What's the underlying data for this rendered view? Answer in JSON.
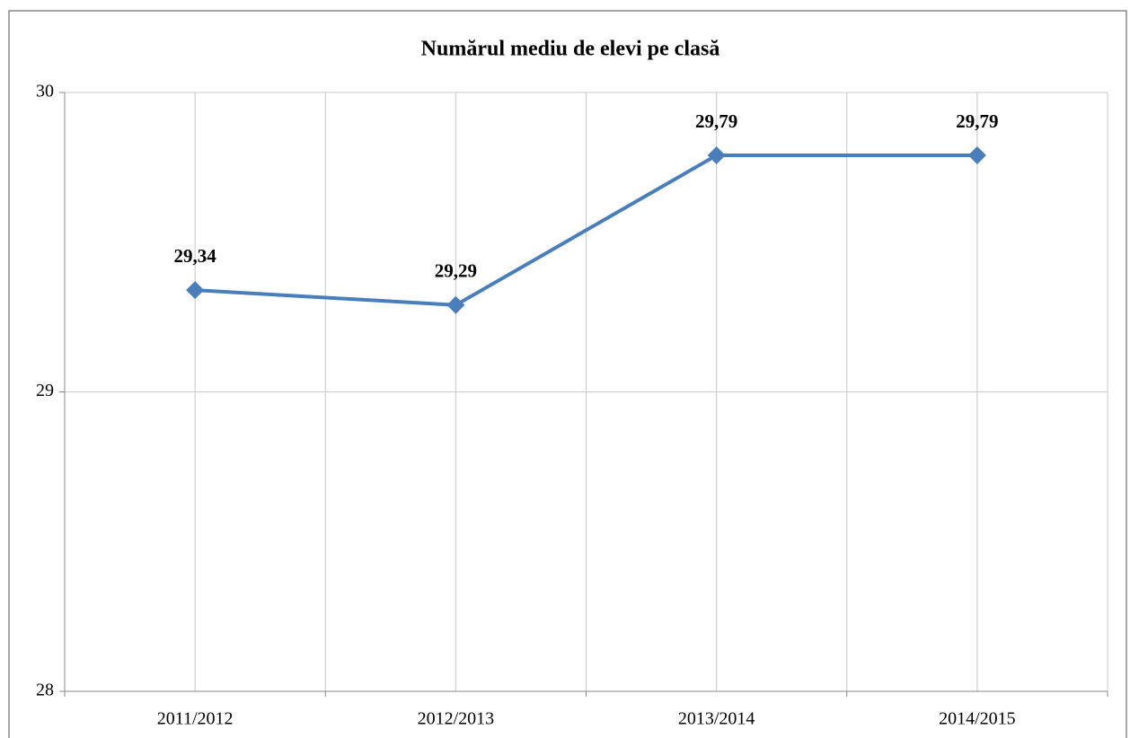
{
  "chart_data": {
    "type": "line",
    "title": "Numărul mediu de elevi pe clasă",
    "categories": [
      "2011/2012",
      "2012/2013",
      "2013/2014",
      "2014/2015"
    ],
    "values": [
      29.34,
      29.29,
      29.79,
      29.79
    ],
    "value_labels": [
      "29,34",
      "29,29",
      "29,79",
      "29,79"
    ],
    "color": "#4a7ebb",
    "ylim": [
      28,
      30
    ],
    "yticks": [
      28,
      29,
      30
    ],
    "grid": true
  }
}
